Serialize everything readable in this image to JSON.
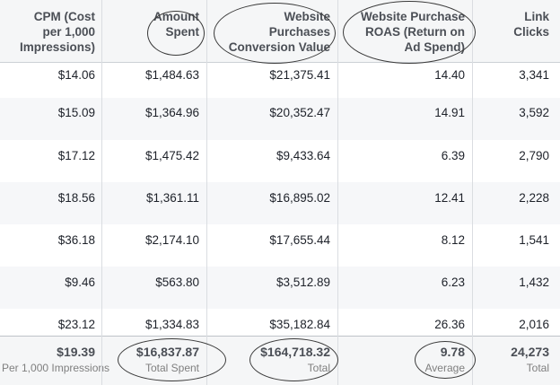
{
  "columns": [
    {
      "label_lines": [
        "CPM (Cost",
        "per 1,000",
        "Impressions)"
      ]
    },
    {
      "label_lines": [
        "Amount",
        "Spent"
      ]
    },
    {
      "label_lines": [
        "Website",
        "Purchases",
        "Conversion Value"
      ]
    },
    {
      "label_lines": [
        "Website Purchase",
        "ROAS (Return on",
        "Ad Spend)"
      ]
    },
    {
      "label_lines": [
        "Link",
        "Clicks"
      ]
    }
  ],
  "rows": [
    [
      "$14.06",
      "$1,484.63",
      "$21,375.41",
      "14.40",
      "3,341"
    ],
    [
      "$15.09",
      "$1,364.96",
      "$20,352.47",
      "14.91",
      "3,592"
    ],
    [
      "$17.12",
      "$1,475.42",
      "$9,433.64",
      "6.39",
      "2,790"
    ],
    [
      "$18.56",
      "$1,361.11",
      "$16,895.02",
      "12.41",
      "2,228"
    ],
    [
      "$36.18",
      "$2,174.10",
      "$17,655.44",
      "8.12",
      "1,541"
    ],
    [
      "$9.46",
      "$563.80",
      "$3,512.89",
      "6.23",
      "1,432"
    ],
    [
      "$23.12",
      "$1,334.83",
      "$35,182.84",
      "26.36",
      "2,016"
    ]
  ],
  "totals": [
    {
      "value": "$19.39",
      "label": "Per 1,000 Impressions"
    },
    {
      "value": "$16,837.87",
      "label": "Total Spent"
    },
    {
      "value": "$164,718.32",
      "label": "Total"
    },
    {
      "value": "9.78",
      "label": "Average"
    },
    {
      "value": "24,273",
      "label": "Total"
    }
  ],
  "annotation_color": "#3a3a3a"
}
